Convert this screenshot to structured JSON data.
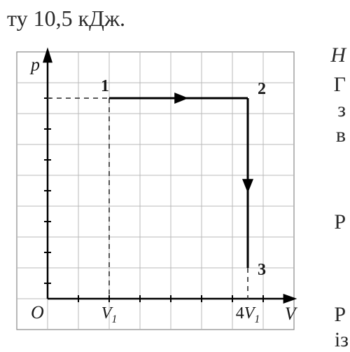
{
  "top_text": "ту 10,5 кДж.",
  "right_letters": {
    "r1": "Н",
    "r2": "Г",
    "r3": "з",
    "r4": "в",
    "r5": "Р",
    "r6": "Р",
    "r7": "із"
  },
  "chart": {
    "type": "line",
    "axis_labels": {
      "y": "p",
      "x": "V",
      "origin": "O",
      "xtick1": "V₁",
      "xtick2": "4V₁"
    },
    "points": {
      "p1": "1",
      "p2": "2",
      "p3": "3"
    },
    "colors": {
      "bg": "#ffffff",
      "grid": "#b8b8b8",
      "grid_outer": "#888888",
      "axis": "#000000",
      "path": "#000000",
      "dash": "#444444",
      "text": "#1a1a1a"
    },
    "grid": {
      "cols": 9,
      "rows": 9,
      "cell": 44
    },
    "geometry": {
      "origin_cell": [
        1,
        8
      ],
      "p1_cell": [
        3,
        1.5
      ],
      "p2_cell": [
        7.5,
        1.5
      ],
      "p3_cell": [
        7.5,
        7
      ],
      "arrow1_at": 5.3,
      "arrow2_at": 4.3
    },
    "stroke": {
      "axis_w": 2.5,
      "path_w": 3,
      "grid_w": 1,
      "dash_pattern": "7,6"
    },
    "font": {
      "axis_label_size": 26,
      "point_label_size": 24,
      "tick_label_size": 24
    }
  }
}
